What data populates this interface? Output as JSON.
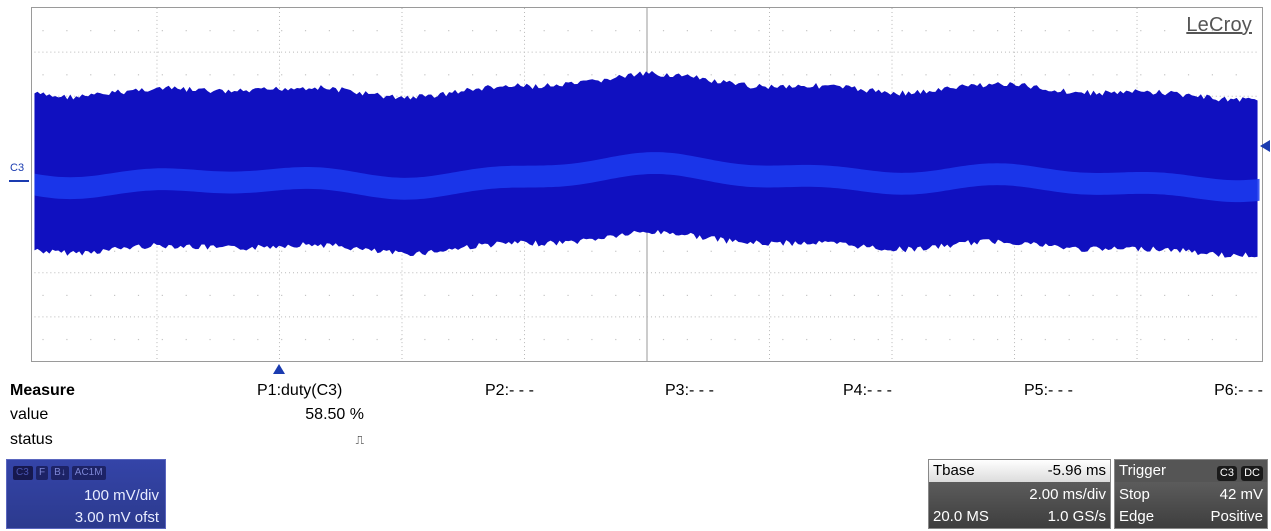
{
  "brand": "LeCroy",
  "channel_label": "C3",
  "colors": {
    "trace_dark": "#1010c0",
    "trace_band": "#1c3cf0",
    "grid": "#b8b8b8",
    "accent": "#1a3bb0"
  },
  "measure": {
    "title": "Measure",
    "row_value_label": "value",
    "row_status_label": "status",
    "params": [
      {
        "label": "P1:duty(C3)",
        "value": "58.50 %",
        "status": "⎍"
      },
      {
        "label": "P2:- - -",
        "value": "",
        "status": ""
      },
      {
        "label": "P3:- - -",
        "value": "",
        "status": ""
      },
      {
        "label": "P4:- - -",
        "value": "",
        "status": ""
      },
      {
        "label": "P5:- - -",
        "value": "",
        "status": ""
      },
      {
        "label": "P6:- - -",
        "value": "",
        "status": ""
      }
    ]
  },
  "channel_box": {
    "tags": [
      "C3",
      "F",
      "B↓",
      "AC1M"
    ],
    "scale": "100 mV/div",
    "offset": "3.00 mV ofst"
  },
  "timebase": {
    "label": "Tbase",
    "delay": "-5.96 ms",
    "per_div": "2.00 ms/div",
    "samples": "20.0 MS",
    "rate": "1.0 GS/s"
  },
  "trigger": {
    "label": "Trigger",
    "source_tag": "C3",
    "coupling_tag": "DC",
    "mode": "Stop",
    "level": "42 mV",
    "type": "Edge",
    "slope": "Positive"
  }
}
